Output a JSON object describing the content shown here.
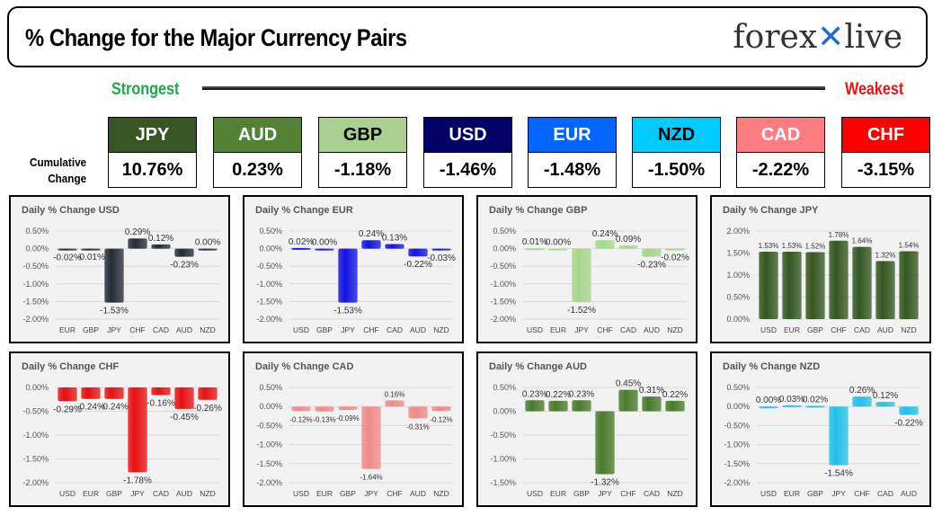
{
  "header": {
    "title": "% Change for the Major Currency Pairs",
    "logo": "forexlive",
    "strongest": "Strongest",
    "weakest": "Weakest",
    "cumulative_label_1": "Cumulative",
    "cumulative_label_2": "Change"
  },
  "ranking": [
    {
      "currency": "JPY",
      "change": "10.76%",
      "color": "#375623",
      "text": "#ffffff"
    },
    {
      "currency": "AUD",
      "change": "0.23%",
      "color": "#548235",
      "text": "#ffffff"
    },
    {
      "currency": "GBP",
      "change": "-1.18%",
      "color": "#a9d08e",
      "text": "#000000"
    },
    {
      "currency": "USD",
      "change": "-1.46%",
      "color": "#000066",
      "text": "#ffffff"
    },
    {
      "currency": "EUR",
      "change": "-1.48%",
      "color": "#0066ff",
      "text": "#ffffff"
    },
    {
      "currency": "NZD",
      "change": "-1.50%",
      "color": "#00ccff",
      "text": "#000000"
    },
    {
      "currency": "CAD",
      "change": "-2.22%",
      "color": "#ff7c80",
      "text": "#ffffff"
    },
    {
      "currency": "CHF",
      "change": "-3.15%",
      "color": "#ff0000",
      "text": "#ffffff"
    }
  ],
  "chart_data": [
    {
      "type": "bar",
      "title": "Daily % Change USD",
      "color": "#252b36",
      "categories": [
        "EUR",
        "GBP",
        "JPY",
        "CHF",
        "CAD",
        "AUD",
        "NZD"
      ],
      "values": [
        -0.02,
        -0.01,
        -1.53,
        0.29,
        0.12,
        -0.23,
        0.0
      ],
      "ylim": [
        -2,
        0.5
      ],
      "ticks": [
        0.5,
        0,
        -0.5,
        -1,
        -1.5,
        -2
      ],
      "grid": true
    },
    {
      "type": "bar",
      "title": "Daily % Change EUR",
      "color": "#1212e0",
      "categories": [
        "USD",
        "GBP",
        "JPY",
        "CHF",
        "CAD",
        "AUD",
        "NZD"
      ],
      "values": [
        0.02,
        0.0,
        -1.53,
        0.24,
        0.13,
        -0.22,
        -0.03
      ],
      "ylim": [
        -2,
        0.5
      ],
      "ticks": [
        0.5,
        0,
        -0.5,
        -1,
        -1.5,
        -2
      ],
      "grid": true
    },
    {
      "type": "bar",
      "title": "Daily % Change GBP",
      "color": "#a6d68c",
      "categories": [
        "USD",
        "EUR",
        "JPY",
        "CHF",
        "CAD",
        "AUD",
        "NZD"
      ],
      "values": [
        0.01,
        0.0,
        -1.52,
        0.24,
        0.09,
        -0.23,
        -0.02
      ],
      "ylim": [
        -2,
        0.5
      ],
      "ticks": [
        0.5,
        0,
        -0.5,
        -1,
        -1.5,
        -2
      ],
      "grid": true
    },
    {
      "type": "bar",
      "title": "Daily % Change JPY",
      "color": "#34561f",
      "categories": [
        "USD",
        "EUR",
        "GBP",
        "CHF",
        "CAD",
        "AUD",
        "NZD"
      ],
      "values": [
        1.53,
        1.53,
        1.52,
        1.78,
        1.64,
        1.32,
        1.54
      ],
      "ylim": [
        0,
        2
      ],
      "ticks": [
        2,
        1.5,
        1,
        0.5,
        0
      ],
      "grid": true
    },
    {
      "type": "bar",
      "title": "Daily % Change CHF",
      "color": "#e81010",
      "categories": [
        "USD",
        "EUR",
        "GBP",
        "JPY",
        "CAD",
        "AUD",
        "NZD"
      ],
      "values": [
        -0.29,
        -0.24,
        -0.24,
        -1.78,
        -0.16,
        -0.45,
        -0.26
      ],
      "ylim": [
        -2,
        0
      ],
      "ticks": [
        0,
        -0.5,
        -1,
        -1.5,
        -2
      ],
      "grid": true
    },
    {
      "type": "bar",
      "title": "Daily % Change CAD",
      "color": "#f08a8a",
      "categories": [
        "USD",
        "EUR",
        "GBP",
        "JPY",
        "CHF",
        "AUD",
        "NZD"
      ],
      "values": [
        -0.12,
        -0.13,
        -0.09,
        -1.64,
        0.16,
        -0.31,
        -0.12
      ],
      "ylim": [
        -2,
        0.5
      ],
      "ticks": [
        0.5,
        0,
        -0.5,
        -1,
        -1.5,
        -2
      ],
      "grid": true
    },
    {
      "type": "bar",
      "title": "Daily % Change AUD",
      "color": "#4a7a2a",
      "categories": [
        "USD",
        "EUR",
        "GBP",
        "JPY",
        "CHF",
        "CAD",
        "NZD"
      ],
      "values": [
        0.23,
        0.22,
        0.23,
        -1.32,
        0.45,
        0.31,
        0.22
      ],
      "ylim": [
        -1.5,
        0.5
      ],
      "ticks": [
        0.5,
        0,
        -0.5,
        -1,
        -1.5
      ],
      "grid": true
    },
    {
      "type": "bar",
      "title": "Daily % Change NZD",
      "color": "#22c0ea",
      "categories": [
        "USD",
        "EUR",
        "GBP",
        "JPY",
        "CHF",
        "CAD",
        "AUD"
      ],
      "values": [
        0.0,
        0.03,
        0.02,
        -1.54,
        0.26,
        0.12,
        -0.22
      ],
      "ylim": [
        -2,
        0.5
      ],
      "ticks": [
        0.5,
        0,
        -0.5,
        -1,
        -1.5,
        -2
      ],
      "grid": true
    }
  ]
}
